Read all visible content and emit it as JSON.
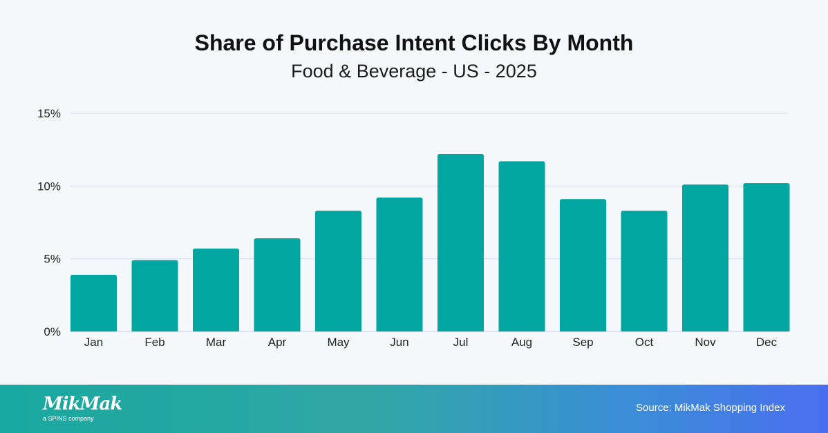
{
  "chart_data": {
    "type": "bar",
    "title": "Share of Purchase Intent Clicks By Month",
    "subtitle": "Food & Beverage - US - 2025",
    "categories": [
      "Jan",
      "Feb",
      "Mar",
      "Apr",
      "May",
      "Jun",
      "Jul",
      "Aug",
      "Sep",
      "Oct",
      "Nov",
      "Dec"
    ],
    "values": [
      3.9,
      4.9,
      5.7,
      6.4,
      8.3,
      9.2,
      12.2,
      11.7,
      9.1,
      8.3,
      10.1,
      10.2
    ],
    "value_unit": "%",
    "ylim": [
      0,
      15
    ],
    "yticks": [
      0,
      5,
      10,
      15
    ],
    "ytick_labels": [
      "0%",
      "5%",
      "10%",
      "15%"
    ],
    "xlabel": "",
    "ylabel": "",
    "grid": true,
    "bar_color": "#00a69f"
  },
  "footer": {
    "logo_text": "MikMak",
    "logo_tagline": "a SPINS company",
    "source": "Source: MikMak Shopping Index"
  }
}
